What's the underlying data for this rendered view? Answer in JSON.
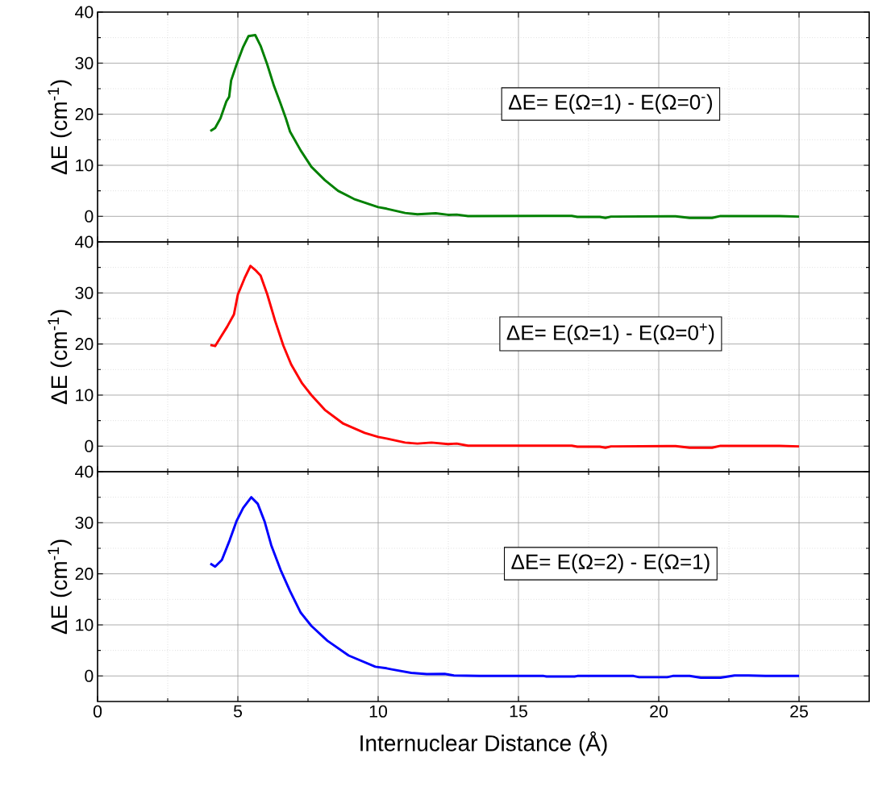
{
  "chart_data": [
    {
      "type": "line",
      "ylabel": "ΔE (cm$^{-1}$)",
      "annotations": [
        "ΔE= E(Ω=1) - E(Ω=0$^{-}$)"
      ],
      "xlim": [
        0,
        27.5
      ],
      "ylim": [
        -5,
        40
      ],
      "xticks": [
        0,
        5,
        10,
        15,
        20,
        25
      ],
      "yticks": [
        0,
        10,
        20,
        30,
        40
      ],
      "grid": true,
      "tick_labels": "y",
      "line_style": "solid",
      "x": [
        4.02,
        4.19,
        4.38,
        4.59,
        4.69,
        4.76,
        4.95,
        5.19,
        5.38,
        5.62,
        5.81,
        6.05,
        6.29,
        6.52,
        6.71,
        6.86,
        7.24,
        7.62,
        8.1,
        8.57,
        9.14,
        10.0,
        10.3,
        10.96,
        11.4,
        12.05,
        12.49,
        12.8,
        13.2,
        15.9,
        16.9,
        17.1,
        17.9,
        18.1,
        18.3,
        20.3,
        20.6,
        21.1,
        21.9,
        22.2,
        24.3,
        25.0
      ],
      "series": [
        {
          "color": "#008000",
          "values": [
            16.7,
            17.3,
            19.2,
            22.5,
            23.4,
            26.6,
            29.7,
            33.2,
            35.3,
            35.5,
            33.4,
            29.7,
            25.5,
            22.1,
            19.2,
            16.6,
            12.9,
            9.7,
            7.1,
            5.0,
            3.4,
            1.8,
            1.5,
            0.66,
            0.4,
            0.6,
            0.3,
            0.35,
            0.06,
            0.1,
            0.1,
            -0.1,
            -0.1,
            -0.3,
            -0.05,
            0,
            0,
            -0.3,
            -0.3,
            0.06,
            0.06,
            -0.05
          ]
        }
      ]
    },
    {
      "type": "line",
      "ylabel": "ΔE (cm$^{-1}$)",
      "annotations": [
        "ΔE= E(Ω=1) - E(Ω=0$^{+}$)"
      ],
      "xlim": [
        0,
        27.5
      ],
      "ylim": [
        -5,
        40
      ],
      "xticks": [
        0,
        5,
        10,
        15,
        20,
        25
      ],
      "yticks": [
        0,
        10,
        20,
        30,
        40
      ],
      "grid": true,
      "tick_labels": "y",
      "line_style": "solid",
      "x": [
        4.02,
        4.19,
        4.38,
        4.62,
        4.86,
        5.0,
        5.24,
        5.45,
        5.62,
        5.81,
        6.05,
        6.33,
        6.62,
        6.9,
        7.29,
        7.62,
        8.1,
        8.76,
        9.52,
        10.0,
        10.3,
        10.96,
        11.4,
        11.9,
        12.49,
        12.8,
        13.2,
        15.9,
        16.9,
        17.1,
        17.9,
        18.1,
        18.3,
        20.3,
        20.6,
        21.1,
        21.9,
        22.2,
        24.3,
        25.0
      ],
      "series": [
        {
          "color": "#ff0000",
          "values": [
            19.8,
            19.6,
            21.3,
            23.4,
            25.8,
            29.7,
            32.9,
            35.3,
            34.5,
            33.4,
            29.7,
            24.5,
            19.7,
            16.0,
            12.3,
            10.0,
            7.1,
            4.4,
            2.6,
            1.8,
            1.5,
            0.7,
            0.5,
            0.7,
            0.4,
            0.5,
            0.1,
            0.1,
            0.1,
            -0.1,
            -0.1,
            -0.3,
            -0.05,
            0,
            0,
            -0.3,
            -0.3,
            0.06,
            0.06,
            -0.05
          ]
        }
      ]
    },
    {
      "type": "line",
      "xlabel": "Internuclear Distance (Å)",
      "ylabel": "ΔE (cm$^{-1}$)",
      "annotations": [
        "ΔE= E(Ω=2) - E(Ω=1)"
      ],
      "xlim": [
        0,
        27.5
      ],
      "ylim": [
        -5,
        40
      ],
      "xticks": [
        0,
        5,
        10,
        15,
        20,
        25
      ],
      "yticks": [
        0,
        10,
        20,
        30,
        40
      ],
      "grid": true,
      "line_style": "solid",
      "x": [
        4.02,
        4.19,
        4.43,
        4.71,
        4.95,
        5.19,
        5.48,
        5.71,
        5.95,
        6.19,
        6.52,
        6.86,
        7.24,
        7.62,
        8.19,
        8.95,
        9.9,
        10.3,
        10.48,
        11.18,
        11.73,
        12.37,
        12.7,
        13.6,
        15.9,
        16.0,
        17.0,
        17.1,
        19.1,
        19.3,
        20.3,
        20.5,
        21.1,
        21.5,
        22.2,
        22.7,
        23.2,
        23.8,
        25.0
      ],
      "series": [
        {
          "color": "#0000ff",
          "values": [
            22.0,
            21.4,
            22.7,
            26.6,
            30.3,
            32.9,
            35.0,
            33.7,
            30.3,
            25.6,
            20.8,
            16.6,
            12.4,
            9.8,
            6.9,
            4.0,
            1.8,
            1.5,
            1.3,
            0.6,
            0.36,
            0.4,
            0.1,
            0,
            0,
            -0.1,
            -0.1,
            0,
            0,
            -0.25,
            -0.25,
            0,
            0,
            -0.35,
            -0.35,
            0.1,
            0.1,
            0,
            0
          ]
        }
      ]
    }
  ]
}
